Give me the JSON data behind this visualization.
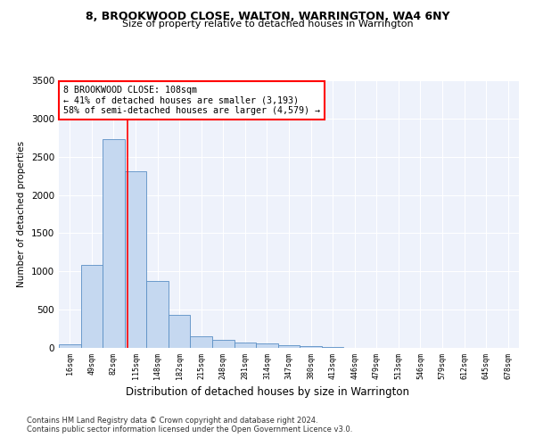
{
  "title1": "8, BROOKWOOD CLOSE, WALTON, WARRINGTON, WA4 6NY",
  "title2": "Size of property relative to detached houses in Warrington",
  "xlabel": "Distribution of detached houses by size in Warrington",
  "ylabel": "Number of detached properties",
  "bin_labels": [
    "16sqm",
    "49sqm",
    "82sqm",
    "115sqm",
    "148sqm",
    "182sqm",
    "215sqm",
    "248sqm",
    "281sqm",
    "314sqm",
    "347sqm",
    "380sqm",
    "413sqm",
    "446sqm",
    "479sqm",
    "513sqm",
    "546sqm",
    "579sqm",
    "612sqm",
    "645sqm",
    "678sqm"
  ],
  "bar_values": [
    50,
    1080,
    2730,
    2310,
    880,
    430,
    155,
    100,
    70,
    55,
    30,
    20,
    10,
    5,
    3,
    2,
    1,
    1,
    1,
    0,
    0
  ],
  "bar_color": "#c5d8f0",
  "bar_edge_color": "#5a8fc4",
  "redline_x": 2.62,
  "annotation_text": "8 BROOKWOOD CLOSE: 108sqm\n← 41% of detached houses are smaller (3,193)\n58% of semi-detached houses are larger (4,579) →",
  "annotation_box_color": "white",
  "annotation_box_edge_color": "red",
  "footer1": "Contains HM Land Registry data © Crown copyright and database right 2024.",
  "footer2": "Contains public sector information licensed under the Open Government Licence v3.0.",
  "ylim": [
    0,
    3500
  ],
  "background_color": "#eef2fb"
}
